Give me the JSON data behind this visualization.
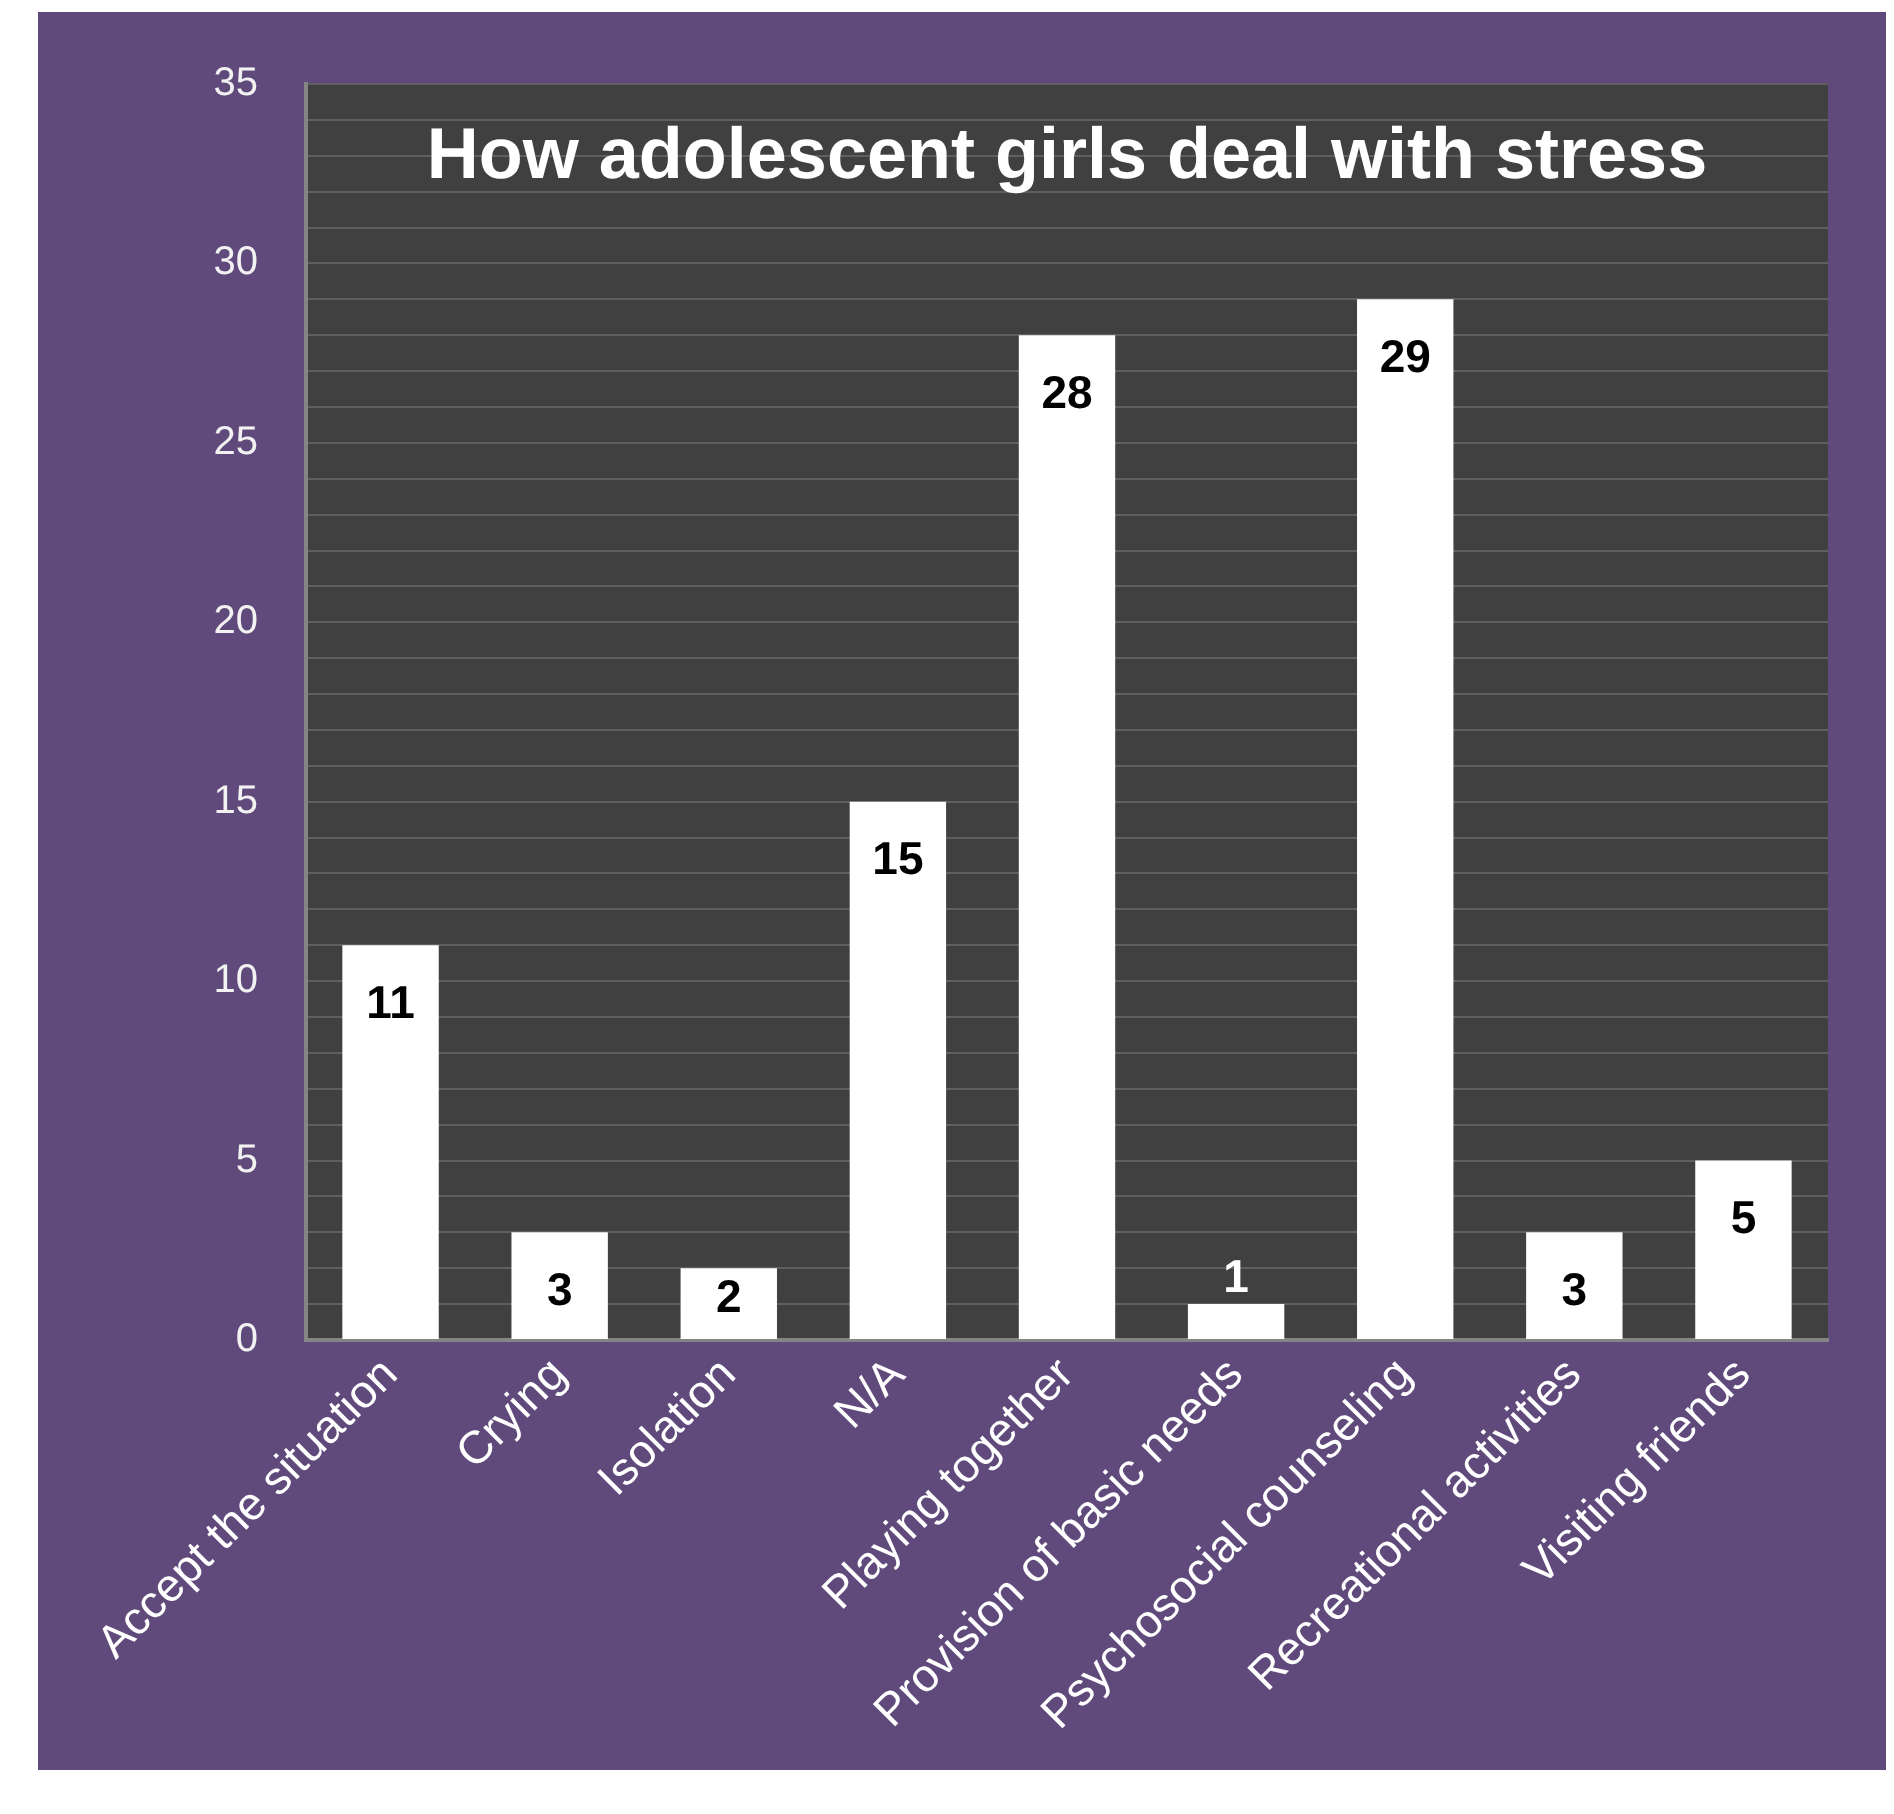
{
  "chart_data": {
    "type": "bar",
    "title": "How adolescent girls deal with stress",
    "categories": [
      "Accept the situation",
      "Crying",
      "Isolation",
      "N/A",
      "Playing together",
      "Provision of basic needs",
      "Psychosocial counseling",
      "Recreational activities",
      "Visiting friends"
    ],
    "values": [
      11,
      3,
      2,
      15,
      28,
      1,
      29,
      3,
      5
    ],
    "color": "#ffffff",
    "ylim": [
      0,
      35
    ],
    "yticks": [
      0,
      {
        "value": 1,
        "label": null
      },
      {
        "value": 2,
        "label": null
      },
      {
        "value": 3,
        "label": null
      },
      {
        "value": 4,
        "label": null
      },
      5,
      {
        "value": 6,
        "label": null
      },
      {
        "value": 7,
        "label": null
      },
      {
        "value": 8,
        "label": null
      },
      {
        "value": 9,
        "label": null
      },
      10,
      {
        "value": 11,
        "label": null
      },
      {
        "value": 12,
        "label": null
      },
      {
        "value": 13,
        "label": null
      },
      {
        "value": 14,
        "label": null
      },
      15,
      {
        "value": 16,
        "label": null
      },
      {
        "value": 17,
        "label": null
      },
      {
        "value": 18,
        "label": null
      },
      {
        "value": 19,
        "label": null
      },
      20,
      {
        "value": 21,
        "label": null
      },
      {
        "value": 22,
        "label": null
      },
      {
        "value": 23,
        "label": null
      },
      {
        "value": 24,
        "label": null
      },
      25,
      {
        "value": 26,
        "label": null
      },
      {
        "value": 27,
        "label": null
      },
      {
        "value": 28,
        "label": null
      },
      {
        "value": 29,
        "label": null
      },
      30,
      {
        "value": 31,
        "label": null
      },
      {
        "value": 32,
        "label": null
      },
      {
        "value": 33,
        "label": null
      },
      {
        "value": 34,
        "label": null
      },
      35
    ],
    "grid": "y",
    "data_labels": true
  }
}
